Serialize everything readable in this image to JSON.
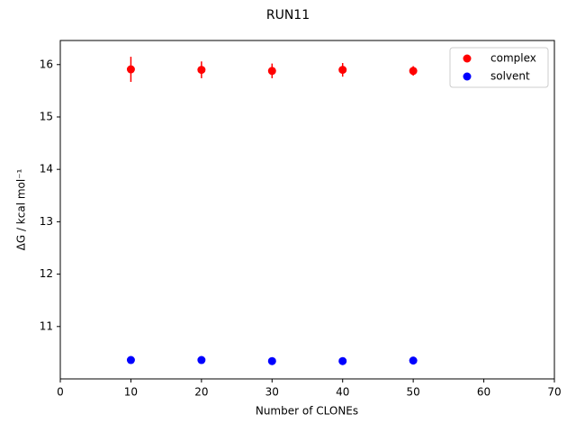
{
  "chart_data": {
    "type": "scatter",
    "title": "RUN11",
    "xlabel": "Number of CLONEs",
    "ylabel": "ΔG / kcal mol⁻¹",
    "x": [
      10,
      20,
      30,
      40,
      50
    ],
    "series": [
      {
        "name": "complex",
        "color": "#ff0000",
        "values": [
          15.91,
          15.9,
          15.88,
          15.9,
          15.88
        ],
        "errors": [
          0.24,
          0.16,
          0.14,
          0.13,
          0.09
        ]
      },
      {
        "name": "solvent",
        "color": "#0000ff",
        "values": [
          10.36,
          10.36,
          10.34,
          10.34,
          10.35
        ]
      }
    ],
    "xlim": [
      0,
      70
    ],
    "xticks": [
      0,
      10,
      20,
      30,
      40,
      50,
      60,
      70
    ],
    "ylim": [
      10.0,
      16.46
    ],
    "yticks": [
      11,
      12,
      13,
      14,
      15,
      16
    ],
    "legend": "upper right"
  }
}
